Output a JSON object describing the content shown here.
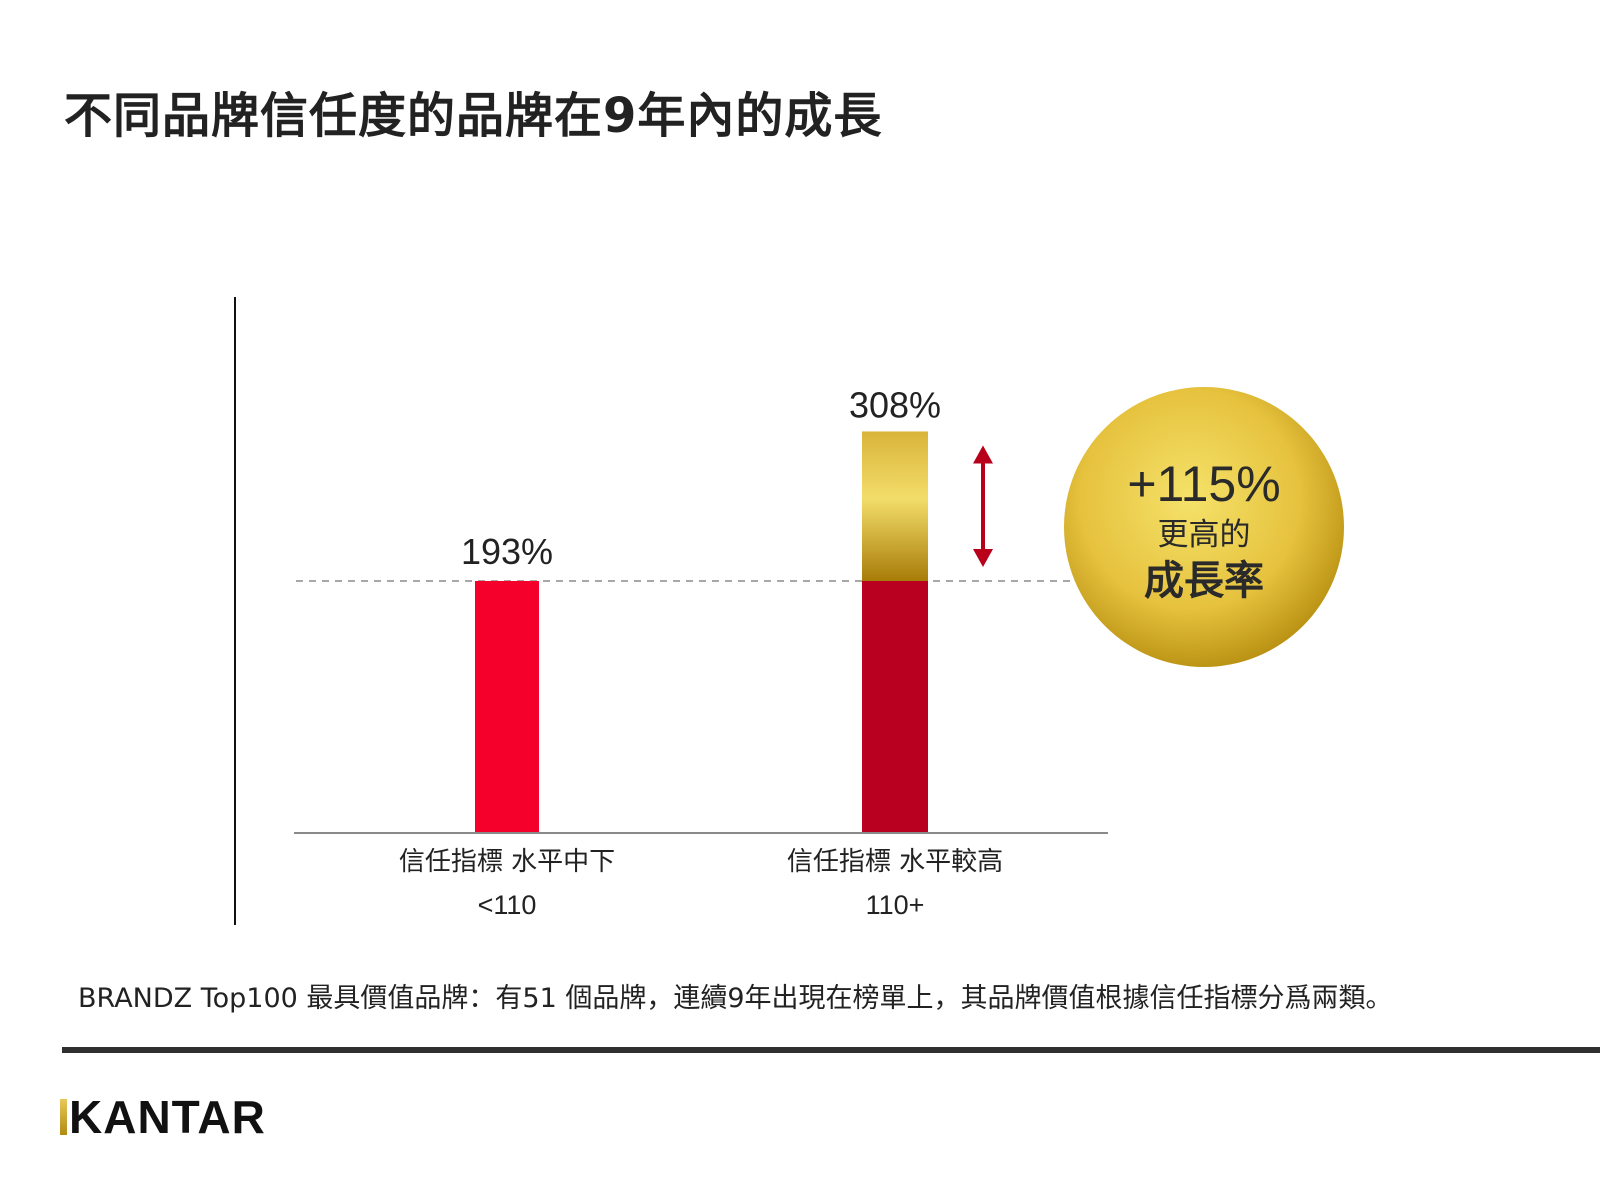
{
  "title": "不同品牌信任度的品牌在9年內的成長",
  "chart_data": {
    "type": "bar",
    "categories": [
      {
        "line1": "信任指標 水平中下",
        "line2": "<110"
      },
      {
        "line1": "信任指標 水平較高",
        "line2": "110+"
      }
    ],
    "values": [
      193,
      308
    ],
    "value_labels": [
      "193%",
      "308%"
    ],
    "ylim": [
      0,
      330
    ],
    "reference_line": 193,
    "grid": false,
    "callout": {
      "value": "+115%",
      "line1": "更高的",
      "line2": "成長率"
    },
    "colors": {
      "bar_low": "#f5002a",
      "bar_high": "#ba0020",
      "increment_gold": "#e8c544",
      "increment_dark": "#b3860a",
      "arrow": "#b8001a",
      "circle_light": "#f2dc5c",
      "circle_dark": "#b8900f"
    }
  },
  "footnote": "BRANDZ Top100 最具價值品牌：有51 個品牌，連續9年出現在榜單上，其品牌價值根據信任指標分爲兩類。",
  "logo": {
    "text": "KANTAR",
    "colors": {
      "accent": "#d4aa2a"
    }
  }
}
